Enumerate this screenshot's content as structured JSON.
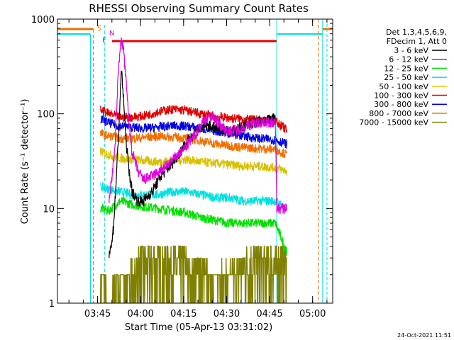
{
  "chart_data": {
    "type": "line",
    "title": "RHESSI Observing Summary Count Rates",
    "xlabel": "Start Time (05-Apr-13 03:31:02)",
    "ylabel": "Count Rate (s⁻¹ detector⁻¹)",
    "yscale": "log",
    "ylim": [
      1,
      1000
    ],
    "xlim_minutes": [
      0,
      96
    ],
    "x_ticks": [
      {
        "label": "03:45",
        "min": 14
      },
      {
        "label": "04:00",
        "min": 29
      },
      {
        "label": "04:15",
        "min": 44
      },
      {
        "label": "04:30",
        "min": 59
      },
      {
        "label": "04:45",
        "min": 74
      },
      {
        "label": "05:00",
        "min": 89
      }
    ],
    "y_ticks": [
      {
        "label": "1",
        "value": 1
      },
      {
        "label": "10",
        "value": 10
      },
      {
        "label": "100",
        "value": 100
      },
      {
        "label": "1000",
        "value": 1000
      }
    ],
    "legend_header": [
      "Det 1,3,4,5,6,9,",
      "FDecim 1, Att 0"
    ],
    "legend_position": "right",
    "flags": [
      {
        "letter": "S",
        "color": "#f07000"
      },
      {
        "letter": "F",
        "color": "#e00000"
      },
      {
        "letter": "N",
        "color": "#e000e0"
      }
    ],
    "series": [
      {
        "name": "3 - 6 keV",
        "color": "#000000",
        "x": [
          18,
          19.5,
          20.5,
          21.5,
          22.3,
          23,
          24,
          25,
          26,
          28,
          30,
          33,
          36,
          40,
          44,
          48,
          52,
          56,
          60,
          64,
          68,
          72,
          76
        ],
        "y": [
          3,
          6,
          20,
          80,
          300,
          150,
          50,
          25,
          15,
          12,
          12,
          15,
          22,
          30,
          45,
          65,
          75,
          70,
          65,
          72,
          80,
          85,
          90
        ]
      },
      {
        "name": "6 - 12 keV",
        "color": "#e000e0",
        "x": [
          18,
          20,
          21,
          22,
          23,
          24,
          25,
          26,
          28,
          30,
          33,
          36,
          40,
          44,
          48,
          51,
          54,
          57,
          60,
          64,
          68,
          72,
          76,
          76.5,
          80
        ],
        "y": [
          12,
          40,
          200,
          600,
          500,
          200,
          80,
          40,
          25,
          20,
          22,
          25,
          32,
          42,
          60,
          85,
          95,
          75,
          65,
          70,
          78,
          82,
          80,
          10,
          10
        ]
      },
      {
        "name": "12 - 25 keV",
        "color": "#00e000",
        "x": [
          15,
          18,
          22,
          26,
          30,
          35,
          40,
          45,
          50,
          55,
          60,
          65,
          70,
          76,
          80
        ],
        "y": [
          10,
          9.5,
          12,
          11,
          10.5,
          10,
          9.5,
          9,
          8,
          7.5,
          7,
          7,
          7,
          7,
          3.5
        ]
      },
      {
        "name": "25 - 50 keV",
        "color": "#00e0e0",
        "x": [
          15,
          18,
          22,
          26,
          30,
          35,
          40,
          45,
          50,
          55,
          60,
          65,
          70,
          76,
          80
        ],
        "y": [
          17,
          16,
          15,
          14,
          14,
          14,
          15,
          15,
          14,
          13,
          13,
          12,
          12,
          12,
          10
        ]
      },
      {
        "name": "50 - 100 keV",
        "color": "#d8c000",
        "x": [
          15,
          18,
          22,
          26,
          30,
          35,
          40,
          45,
          50,
          55,
          60,
          65,
          70,
          76,
          80
        ],
        "y": [
          40,
          37,
          34,
          33,
          32,
          31,
          32,
          33,
          31,
          30,
          29,
          28,
          28,
          27,
          25
        ]
      },
      {
        "name": "100 - 300 keV",
        "color": "#e00000",
        "x": [
          15,
          18,
          22,
          26,
          30,
          35,
          40,
          45,
          50,
          55,
          60,
          65,
          70,
          76,
          80
        ],
        "y": [
          110,
          100,
          92,
          92,
          95,
          105,
          112,
          108,
          100,
          94,
          90,
          88,
          86,
          84,
          67
        ]
      },
      {
        "name": "300 - 800 keV",
        "color": "#0000e0",
        "x": [
          15,
          18,
          22,
          26,
          30,
          35,
          40,
          45,
          50,
          55,
          60,
          65,
          70,
          76,
          80
        ],
        "y": [
          88,
          80,
          74,
          72,
          70,
          72,
          75,
          74,
          70,
          66,
          62,
          58,
          55,
          53,
          48
        ]
      },
      {
        "name": "800 - 7000 keV",
        "color": "#f07000",
        "x": [
          15,
          18,
          22,
          26,
          30,
          35,
          40,
          45,
          50,
          55,
          60,
          65,
          70,
          76,
          80
        ],
        "y": [
          62,
          58,
          55,
          55,
          56,
          58,
          57,
          55,
          52,
          48,
          46,
          44,
          43,
          42,
          37
        ]
      },
      {
        "name": "7000 - 15000 keV",
        "color": "#808000",
        "x": [
          15,
          18,
          22,
          26,
          30,
          35,
          40,
          45,
          50,
          55,
          60,
          65,
          70,
          76,
          80
        ],
        "y": [
          2,
          1.2,
          1.5,
          2,
          3,
          3.5,
          3,
          2.5,
          2,
          1.8,
          2,
          2.5,
          3,
          2.5,
          3.5
        ]
      }
    ]
  },
  "footer": {
    "timestamp": "24-Oct-2021 11:51"
  }
}
